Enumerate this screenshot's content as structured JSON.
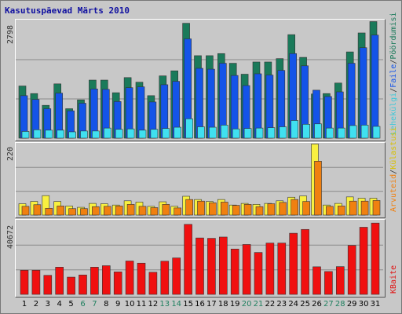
{
  "title": "Kasutuspäevad Märts 2010",
  "panel_labels": {
    "top": {
      "hits": "Pöördumisi",
      "files": "Faile",
      "pages": "Lehekülgi",
      "sep": "/"
    },
    "middle": {
      "visits": "Külastusi",
      "sites": "Arvuteid",
      "sep": "/"
    },
    "bottom": {
      "kbytes": "KBaite"
    }
  },
  "colors": {
    "hits": "#1a7a5a",
    "files": "#1454e8",
    "pages": "#40e0f0",
    "visits": "#f8f040",
    "sites": "#f08010",
    "kbytes": "#f01010",
    "weekend_day": "#208060",
    "weekday": "#000000"
  },
  "chart_data": [
    {
      "type": "bar",
      "title": "Kasutuspäevad Märts 2010",
      "ymax_label": "2798",
      "categories": [
        "1",
        "2",
        "3",
        "4",
        "5",
        "6",
        "7",
        "8",
        "9",
        "10",
        "11",
        "12",
        "13",
        "14",
        "15",
        "16",
        "17",
        "18",
        "19",
        "20",
        "21",
        "22",
        "23",
        "24",
        "25",
        "26",
        "27",
        "28",
        "29",
        "30",
        "31"
      ],
      "weekend": [
        false,
        false,
        false,
        false,
        false,
        true,
        true,
        false,
        false,
        false,
        false,
        false,
        true,
        true,
        false,
        false,
        false,
        false,
        false,
        true,
        true,
        false,
        false,
        false,
        false,
        false,
        true,
        true,
        false,
        false,
        false
      ],
      "ylim": [
        0,
        2798
      ],
      "series": [
        {
          "name": "Pöördumisi",
          "values": [
            1240,
            1060,
            780,
            1290,
            700,
            910,
            1380,
            1380,
            1080,
            1440,
            1330,
            1010,
            1480,
            1600,
            2730,
            1960,
            1960,
            2010,
            1780,
            1520,
            1810,
            1810,
            1890,
            2460,
            1920,
            1050,
            1060,
            1310,
            2050,
            2500,
            2770
          ]
        },
        {
          "name": "Faile",
          "values": [
            1010,
            920,
            700,
            1070,
            650,
            830,
            1170,
            1160,
            870,
            1200,
            1220,
            860,
            1270,
            1350,
            2360,
            1660,
            1640,
            1780,
            1490,
            1250,
            1530,
            1500,
            1610,
            2010,
            1720,
            1140,
            990,
            1100,
            1780,
            2150,
            2450
          ]
        },
        {
          "name": "Lehekülgi",
          "values": [
            160,
            200,
            190,
            190,
            150,
            170,
            170,
            240,
            210,
            220,
            190,
            210,
            230,
            260,
            460,
            270,
            260,
            310,
            220,
            230,
            240,
            250,
            270,
            420,
            330,
            340,
            240,
            240,
            300,
            310,
            280
          ]
        }
      ]
    },
    {
      "type": "bar",
      "ymax_label": "220",
      "categories": [
        "1",
        "2",
        "3",
        "4",
        "5",
        "6",
        "7",
        "8",
        "9",
        "10",
        "11",
        "12",
        "13",
        "14",
        "15",
        "16",
        "17",
        "18",
        "19",
        "20",
        "21",
        "22",
        "23",
        "24",
        "25",
        "26",
        "27",
        "28",
        "29",
        "30",
        "31"
      ],
      "ylim": [
        0,
        220
      ],
      "series": [
        {
          "name": "Külastusi",
          "values": [
            35,
            42,
            60,
            42,
            28,
            24,
            36,
            35,
            31,
            44,
            40,
            27,
            41,
            27,
            58,
            48,
            42,
            48,
            31,
            36,
            33,
            36,
            44,
            55,
            59,
            219,
            31,
            36,
            56,
            52,
            52
          ]
        },
        {
          "name": "Arvuteid",
          "values": [
            27,
            32,
            21,
            28,
            20,
            20,
            26,
            27,
            28,
            33,
            27,
            23,
            33,
            22,
            48,
            43,
            38,
            40,
            30,
            33,
            26,
            35,
            39,
            48,
            42,
            166,
            27,
            28,
            43,
            43,
            45
          ]
        }
      ]
    },
    {
      "type": "bar",
      "ymax_label": "40672",
      "categories": [
        "1",
        "2",
        "3",
        "4",
        "5",
        "6",
        "7",
        "8",
        "9",
        "10",
        "11",
        "12",
        "13",
        "14",
        "15",
        "16",
        "17",
        "18",
        "19",
        "20",
        "21",
        "22",
        "23",
        "24",
        "25",
        "26",
        "27",
        "28",
        "29",
        "30",
        "31"
      ],
      "ylim": [
        0,
        40672
      ],
      "series": [
        {
          "name": "KBaite",
          "values": [
            13300,
            13300,
            10500,
            15000,
            9500,
            10700,
            15000,
            15800,
            12400,
            18400,
            17200,
            12200,
            18300,
            20100,
            38600,
            31100,
            30900,
            31600,
            25000,
            27500,
            23100,
            28300,
            28300,
            33700,
            35800,
            15200,
            12600,
            15300,
            27000,
            37000,
            39300
          ]
        }
      ]
    }
  ]
}
